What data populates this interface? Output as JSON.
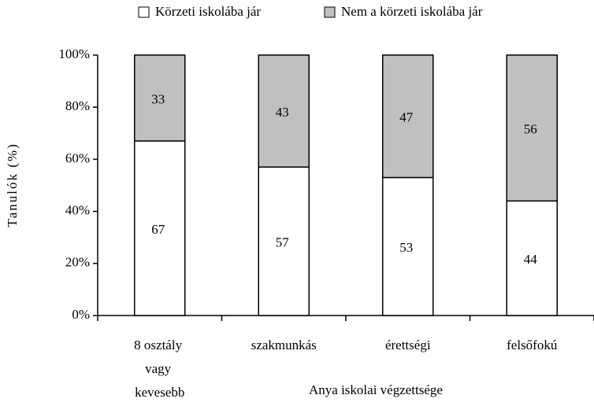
{
  "chart_data": {
    "type": "stacked_bar",
    "x_label": "Anya iskolai végzettsége",
    "y_label": "Tanulók (%)",
    "categories": [
      "8 osztály vagy kevesebb",
      "szakmunkás",
      "érettségi",
      "felsőfokú"
    ],
    "series": [
      {
        "name": "Körzeti iskolába jár",
        "color": "#ffffff",
        "values": [
          67,
          57,
          53,
          44
        ]
      },
      {
        "name": "Nem a körzeti iskolába jár",
        "color": "#c0c0c0",
        "values": [
          33,
          43,
          47,
          56
        ]
      }
    ],
    "ylim": [
      0,
      100
    ],
    "yticks": [
      {
        "value": 0,
        "label": "0%"
      },
      {
        "value": 20,
        "label": "20%"
      },
      {
        "value": 40,
        "label": "40%"
      },
      {
        "value": 60,
        "label": "60%"
      },
      {
        "value": 80,
        "label": "80%"
      },
      {
        "value": 100,
        "label": "100%"
      }
    ],
    "legend": "top"
  }
}
